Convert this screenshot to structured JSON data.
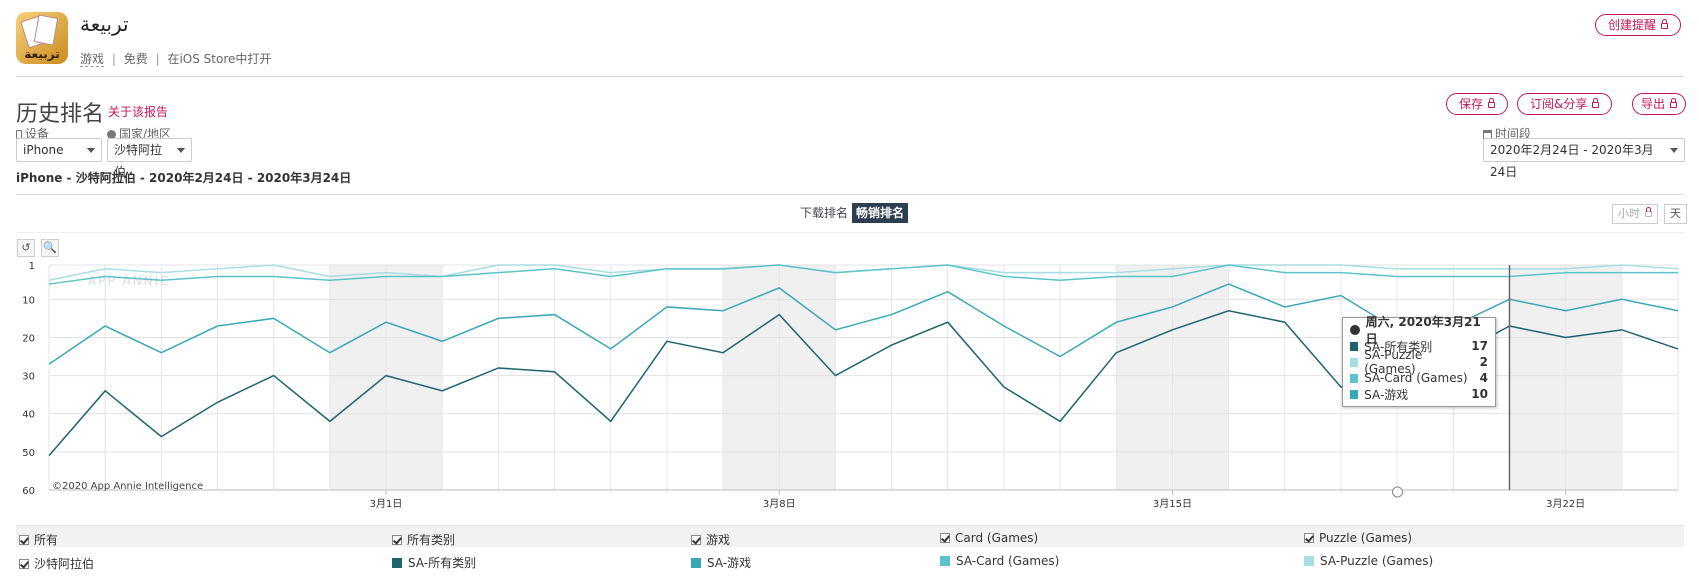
{
  "app": {
    "name": "تربيعة",
    "icon_text": "تربيعة",
    "category": "游戏",
    "price": "免费",
    "store_link": "在iOS Store中打开",
    "sep": "|"
  },
  "actions": {
    "create_alert": "创建提醒",
    "save": "保存",
    "subscribe_share": "订阅&分享",
    "export": "导出"
  },
  "page": {
    "title": "历史排名",
    "about": "关于该报告",
    "subtitle": "iPhone - 沙特阿拉伯 - 2020年2月24日 - 2020年3月24日"
  },
  "filters": {
    "device_label": "设备",
    "device_value": "iPhone",
    "country_label": "国家/地区",
    "country_value": "沙特阿拉伯",
    "period_label": "时间段",
    "period_value": "2020年2月24日 - 2020年3月24日"
  },
  "tabs": [
    "下载排名",
    "畅销排名"
  ],
  "granularity": [
    "小时",
    "天"
  ],
  "chart_tools": {
    "reset": "↺",
    "zoom": "🔍"
  },
  "watermark": "APP ANNIE",
  "copyright": "©2020 App Annie Intelligence",
  "tooltip": {
    "title": "周六, 2020年3月21日",
    "rows": [
      {
        "name": "SA-所有类别",
        "value": "17",
        "color": "#1e6470"
      },
      {
        "name": "SA-Puzzle (Games)",
        "value": "2",
        "color": "#a8dde1"
      },
      {
        "name": "SA-Card (Games)",
        "value": "4",
        "color": "#5bc3c9"
      },
      {
        "name": "SA-游戏",
        "value": "10",
        "color": "#3aa7b8"
      }
    ]
  },
  "legend": {
    "filters": [
      "所有",
      "所有类别",
      "游戏",
      "Card (Games)",
      "Puzzle (Games)"
    ],
    "country": "沙特阿拉伯",
    "series": [
      "SA-所有类别",
      "SA-游戏",
      "SA-Card (Games)",
      "SA-Puzzle (Games)"
    ],
    "colors": [
      "#1e6470",
      "#3aa7b8",
      "#5bc3c9",
      "#a8dde1"
    ]
  },
  "chart_data": {
    "type": "line",
    "y_inverted": true,
    "ylim": [
      60,
      1
    ],
    "yticks": [
      1,
      10,
      20,
      30,
      40,
      50,
      60
    ],
    "x": [
      "2020-02-24",
      "2020-02-25",
      "2020-02-26",
      "2020-02-27",
      "2020-02-28",
      "2020-02-29",
      "2020-03-01",
      "2020-03-02",
      "2020-03-03",
      "2020-03-04",
      "2020-03-05",
      "2020-03-06",
      "2020-03-07",
      "2020-03-08",
      "2020-03-09",
      "2020-03-10",
      "2020-03-11",
      "2020-03-12",
      "2020-03-13",
      "2020-03-14",
      "2020-03-15",
      "2020-03-16",
      "2020-03-17",
      "2020-03-18",
      "2020-03-19",
      "2020-03-20",
      "2020-03-21",
      "2020-03-22",
      "2020-03-23",
      "2020-03-24"
    ],
    "xtick_labels": [
      {
        "date": "2020-03-01",
        "label": "3月1日"
      },
      {
        "date": "2020-03-08",
        "label": "3月8日"
      },
      {
        "date": "2020-03-15",
        "label": "3月15日"
      },
      {
        "date": "2020-03-22",
        "label": "3月22日"
      }
    ],
    "weekend_shading": [
      [
        "2020-02-29",
        "2020-03-01"
      ],
      [
        "2020-03-07",
        "2020-03-08"
      ],
      [
        "2020-03-14",
        "2020-03-15"
      ],
      [
        "2020-03-21",
        "2020-03-22"
      ]
    ],
    "highlight_date": "2020-03-21",
    "series": [
      {
        "name": "SA-所有类别",
        "color": "#1e6470",
        "values": [
          51,
          34,
          46,
          37,
          30,
          42,
          30,
          34,
          28,
          29,
          42,
          21,
          24,
          14,
          30,
          22,
          16,
          33,
          42,
          24,
          18,
          13,
          16,
          33,
          30,
          25,
          17,
          20,
          18,
          23
        ]
      },
      {
        "name": "SA-游戏",
        "color": "#3aa7b8",
        "values": [
          27,
          17,
          24,
          17,
          15,
          24,
          16,
          21,
          15,
          14,
          23,
          12,
          13,
          7,
          18,
          14,
          8,
          17,
          25,
          16,
          12,
          6,
          12,
          9,
          18,
          17,
          10,
          13,
          10,
          13
        ]
      },
      {
        "name": "SA-Card (Games)",
        "color": "#5bc3c9",
        "values": [
          6,
          4,
          5,
          4,
          4,
          5,
          4,
          4,
          3,
          2,
          4,
          2,
          2,
          1,
          3,
          2,
          1,
          4,
          5,
          4,
          4,
          1,
          3,
          3,
          4,
          4,
          4,
          3,
          3,
          3
        ]
      },
      {
        "name": "SA-Puzzle (Games)",
        "color": "#a8dde1",
        "values": [
          5,
          2,
          3,
          2,
          1,
          4,
          3,
          4,
          1,
          1,
          3,
          2,
          2,
          1,
          3,
          2,
          1,
          3,
          3,
          3,
          2,
          1,
          1,
          1,
          2,
          2,
          2,
          2,
          1,
          2
        ]
      }
    ]
  }
}
